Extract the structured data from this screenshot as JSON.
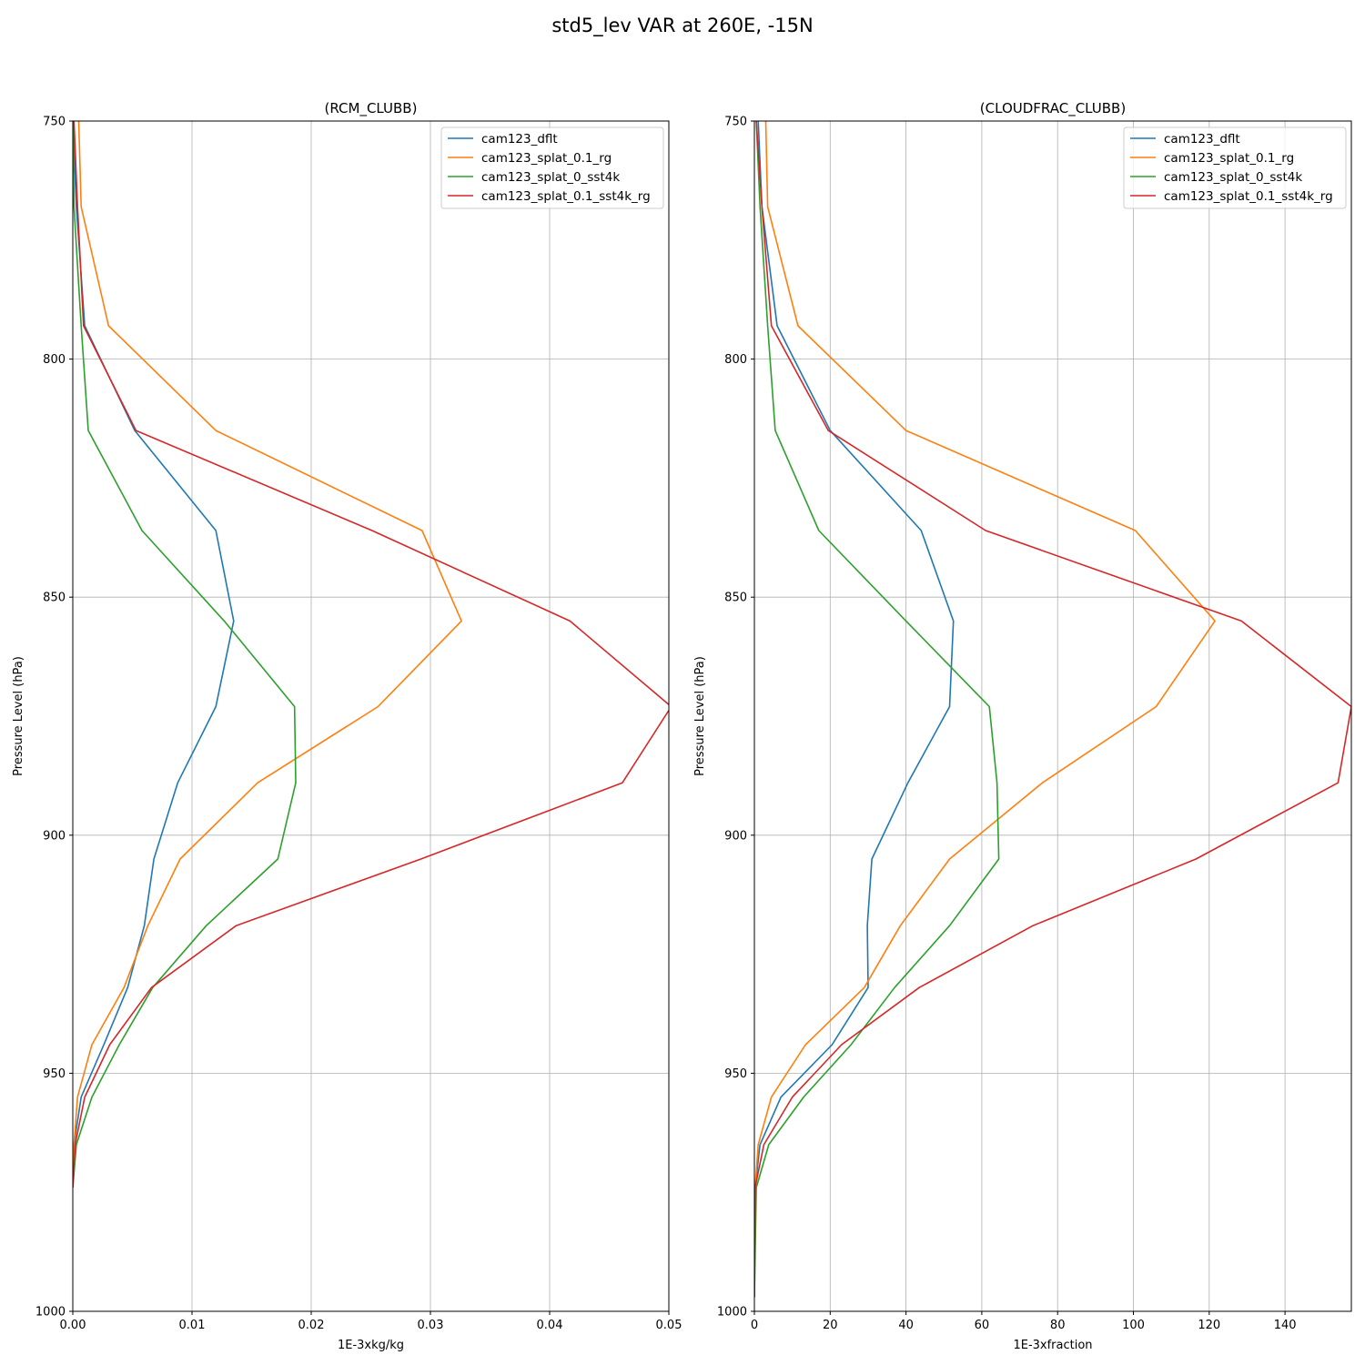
{
  "figure": {
    "suptitle": "std5_lev VAR at 260E, -15N"
  },
  "chart_data": [
    {
      "type": "line",
      "title": "(RCM_CLUBB)",
      "xlabel": "1E-3xkg/kg",
      "ylabel": "Pressure Level (hPa)",
      "xlim": [
        0,
        0.05
      ],
      "ylim": [
        1000,
        750
      ],
      "y_inverted": true,
      "xticks": [
        0,
        0.01,
        0.02,
        0.03,
        0.04,
        0.05
      ],
      "xtick_labels": [
        "0.00",
        "0.01",
        "0.02",
        "0.03",
        "0.04",
        "0.05"
      ],
      "yticks": [
        750,
        800,
        850,
        900,
        950,
        1000
      ],
      "ytick_labels": [
        "750",
        "800",
        "850",
        "900",
        "950",
        "1000"
      ],
      "grid": true,
      "legend_position": "top-right",
      "y": [
        750,
        768,
        793,
        815,
        836,
        855,
        873,
        889,
        905,
        919,
        932,
        944,
        955,
        965,
        974
      ],
      "series": [
        {
          "name": "cam123_dflt",
          "color": "#1f77b4",
          "values": [
            0.0,
            0.0003,
            0.001,
            0.0052,
            0.012,
            0.0135,
            0.012,
            0.0088,
            0.0068,
            0.006,
            0.0046,
            0.0026,
            0.0007,
            0.0001,
            0.0
          ]
        },
        {
          "name": "cam123_splat_0.1_rg",
          "color": "#ff7f0e",
          "values": [
            0.0005,
            0.0007,
            0.003,
            0.012,
            0.0293,
            0.0326,
            0.0256,
            0.0155,
            0.009,
            0.0063,
            0.0043,
            0.0016,
            0.0004,
            0.0001,
            0.0
          ]
        },
        {
          "name": "cam123_splat_0_sst4k",
          "color": "#2ca02c",
          "values": [
            0.0,
            0.0001,
            0.0007,
            0.0013,
            0.0058,
            0.0127,
            0.0186,
            0.0187,
            0.0172,
            0.0112,
            0.0067,
            0.0039,
            0.0016,
            0.0003,
            0.0
          ]
        },
        {
          "name": "cam123_splat_0.1_sst4k_rg",
          "color": "#d62728",
          "values": [
            0.0001,
            0.0004,
            0.0009,
            0.0053,
            0.0251,
            0.0417,
            0.0502,
            0.0461,
            0.0292,
            0.0137,
            0.0066,
            0.0031,
            0.001,
            0.0002,
            0.0
          ]
        }
      ]
    },
    {
      "type": "line",
      "title": "(CLOUDFRAC_CLUBB)",
      "xlabel": "1E-3xfraction",
      "ylabel": "Pressure Level (hPa)",
      "xlim": [
        0,
        157.5
      ],
      "ylim": [
        1000,
        750
      ],
      "y_inverted": true,
      "xticks": [
        0,
        20,
        40,
        60,
        80,
        100,
        120,
        140
      ],
      "xtick_labels": [
        "0",
        "20",
        "40",
        "60",
        "80",
        "100",
        "120",
        "140"
      ],
      "yticks": [
        750,
        800,
        850,
        900,
        950,
        1000
      ],
      "ytick_labels": [
        "750",
        "800",
        "850",
        "900",
        "950",
        "1000"
      ],
      "grid": true,
      "legend_position": "top-right",
      "y": [
        750,
        768,
        793,
        815,
        836,
        855,
        873,
        889,
        905,
        919,
        932,
        944,
        955,
        965,
        974,
        997
      ],
      "series": [
        {
          "name": "cam123_dflt",
          "color": "#1f77b4",
          "values": [
            1.0,
            2.0,
            6.0,
            20.0,
            44.0,
            52.5,
            51.5,
            40.5,
            31.0,
            29.8,
            30.0,
            20.5,
            7.0,
            1.5,
            0.2,
            0.0
          ]
        },
        {
          "name": "cam123_splat_0.1_rg",
          "color": "#ff7f0e",
          "values": [
            3.0,
            3.5,
            11.5,
            40.0,
            100.5,
            121.5,
            106.0,
            76.0,
            51.5,
            38.5,
            29.0,
            13.5,
            4.5,
            1.0,
            0.2,
            0.0
          ]
        },
        {
          "name": "cam123_splat_0_sst4k",
          "color": "#2ca02c",
          "values": [
            0.5,
            1.5,
            3.5,
            5.5,
            17.0,
            40.0,
            62.0,
            64.0,
            64.5,
            51.5,
            37.0,
            25.5,
            13.0,
            3.8,
            0.5,
            0.0
          ]
        },
        {
          "name": "cam123_splat_0.1_sst4k_rg",
          "color": "#d62728",
          "values": [
            0.5,
            2.0,
            4.5,
            19.5,
            61.0,
            128.5,
            157.5,
            154.0,
            116.5,
            73.5,
            43.5,
            23.0,
            10.0,
            2.5,
            0.2,
            0.0
          ]
        }
      ]
    }
  ]
}
